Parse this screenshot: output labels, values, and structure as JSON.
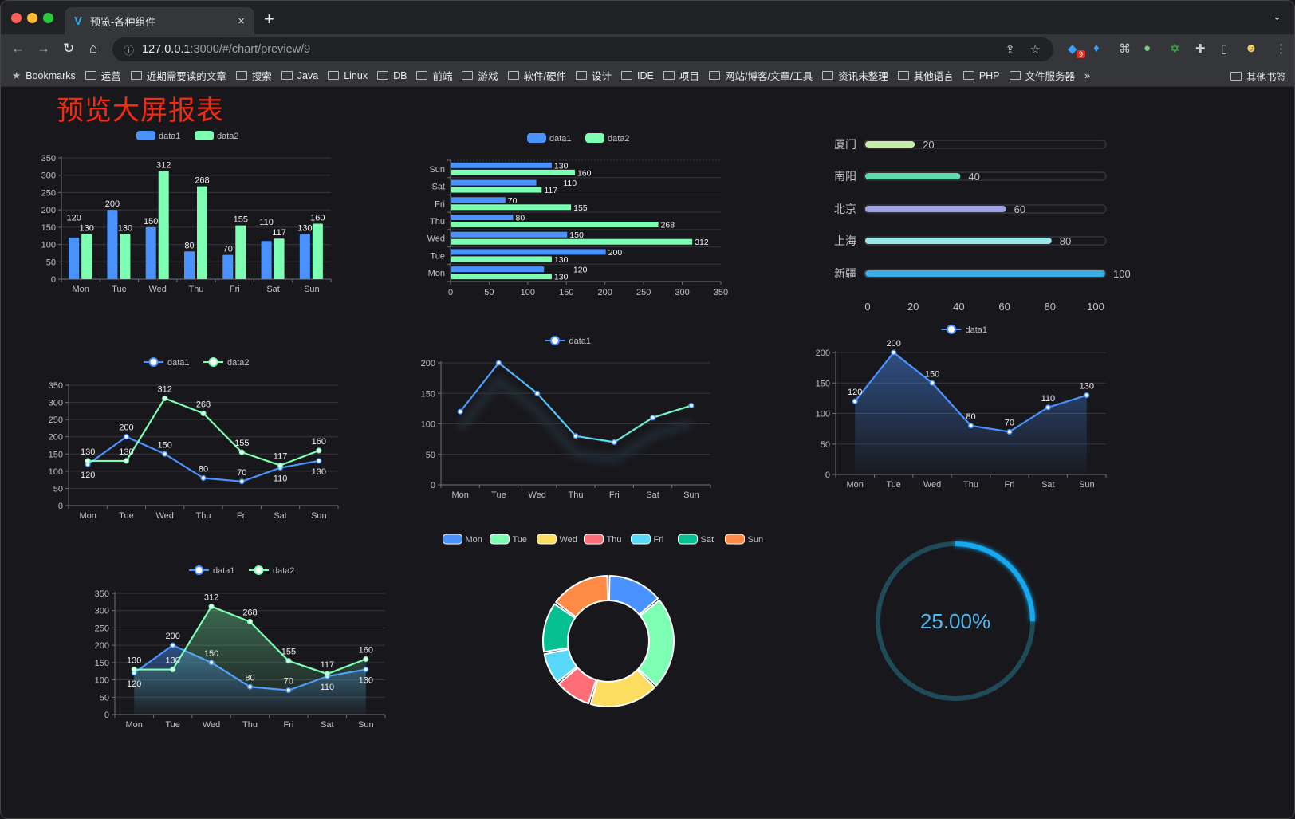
{
  "browser": {
    "tab_title": "预览-各种组件",
    "tab_close": "×",
    "new_tab": "+",
    "url_host": "127.0.0.1",
    "url_rest": ":3000/#/chart/preview/9",
    "ext_badge": "9",
    "bookmarks_label": "Bookmarks",
    "bookmarks": [
      "运营",
      "近期需要读的文章",
      "搜索",
      "Java",
      "Linux",
      "DB",
      "前端",
      "游戏",
      "软件/硬件",
      "设计",
      "IDE",
      "项目",
      "网站/博客/文章/工具",
      "资讯未整理",
      "其他语言",
      "PHP",
      "文件服务器"
    ],
    "overflow": "»",
    "other_bookmarks": "其他书签"
  },
  "page": {
    "title": "预览大屏报表"
  },
  "chart_data": [
    {
      "type": "bar",
      "categories": [
        "Mon",
        "Tue",
        "Wed",
        "Thu",
        "Fri",
        "Sat",
        "Sun"
      ],
      "series": [
        {
          "name": "data1",
          "values": [
            120,
            200,
            150,
            80,
            70,
            110,
            130
          ],
          "color": "#4992ff"
        },
        {
          "name": "data2",
          "values": [
            130,
            130,
            312,
            268,
            155,
            117,
            160
          ],
          "color": "#7cffb2"
        }
      ],
      "ylim": [
        0,
        350
      ],
      "yticks": [
        "0",
        "50",
        "100",
        "150",
        "200",
        "250",
        "300",
        "350"
      ],
      "legend": "top",
      "grid": true,
      "data_labels": true
    },
    {
      "type": "bar",
      "orientation": "horizontal",
      "categories": [
        "Mon",
        "Tue",
        "Wed",
        "Thu",
        "Fri",
        "Sat",
        "Sun"
      ],
      "series": [
        {
          "name": "data1",
          "values": [
            120,
            200,
            150,
            80,
            70,
            110,
            130
          ],
          "color": "#4992ff"
        },
        {
          "name": "data2",
          "values": [
            130,
            130,
            312,
            268,
            155,
            117,
            160
          ],
          "color": "#7cffb2"
        }
      ],
      "xlim": [
        0,
        350
      ],
      "xticks": [
        "0",
        "50",
        "100",
        "150",
        "200",
        "250",
        "300",
        "350"
      ],
      "legend": "top",
      "grid": true,
      "data_labels": true
    },
    {
      "type": "bar",
      "orientation": "horizontal",
      "style": "progress",
      "categories": [
        "厦门",
        "南阳",
        "北京",
        "上海",
        "新疆"
      ],
      "values": [
        20,
        40,
        60,
        80,
        100
      ],
      "labels": [
        "20",
        "40",
        "60",
        "80",
        "100"
      ],
      "colors": [
        "#c5eca8",
        "#5ddcac",
        "#9fa3e6",
        "#9ae6ed",
        "#3aaee4"
      ],
      "xlim": [
        0,
        100
      ],
      "xticks": [
        "0",
        "20",
        "40",
        "60",
        "80",
        "100"
      ]
    },
    {
      "type": "line",
      "categories": [
        "Mon",
        "Tue",
        "Wed",
        "Thu",
        "Fri",
        "Sat",
        "Sun"
      ],
      "series": [
        {
          "name": "data1",
          "values": [
            120,
            200,
            150,
            80,
            70,
            110,
            130
          ],
          "color": "#4992ff"
        },
        {
          "name": "data2",
          "values": [
            130,
            130,
            312,
            268,
            155,
            117,
            160
          ],
          "color": "#7cffb2"
        }
      ],
      "ylim": [
        0,
        350
      ],
      "yticks": [
        "0",
        "50",
        "100",
        "150",
        "200",
        "250",
        "300",
        "350"
      ],
      "legend": "top",
      "grid": true,
      "data_labels": true
    },
    {
      "type": "line",
      "categories": [
        "Mon",
        "Tue",
        "Wed",
        "Thu",
        "Fri",
        "Sat",
        "Sun"
      ],
      "series": [
        {
          "name": "data1",
          "values": [
            120,
            200,
            150,
            80,
            70,
            110,
            130
          ],
          "color": "#4992ff",
          "gradient_to": "#7cffb2"
        }
      ],
      "ylim": [
        0,
        200
      ],
      "yticks": [
        "0",
        "50",
        "100",
        "150",
        "200"
      ],
      "legend": "top",
      "grid": true,
      "data_labels": false
    },
    {
      "type": "area",
      "categories": [
        "Mon",
        "Tue",
        "Wed",
        "Thu",
        "Fri",
        "Sat",
        "Sun"
      ],
      "series": [
        {
          "name": "data1",
          "values": [
            120,
            200,
            150,
            80,
            70,
            110,
            130
          ],
          "color": "#4992ff"
        }
      ],
      "ylim": [
        0,
        200
      ],
      "yticks": [
        "0",
        "50",
        "100",
        "150",
        "200"
      ],
      "legend": "top",
      "grid": true,
      "data_labels": true
    },
    {
      "type": "area",
      "categories": [
        "Mon",
        "Tue",
        "Wed",
        "Thu",
        "Fri",
        "Sat",
        "Sun"
      ],
      "series": [
        {
          "name": "data1",
          "values": [
            120,
            200,
            150,
            80,
            70,
            110,
            130
          ],
          "color": "#4992ff"
        },
        {
          "name": "data2",
          "values": [
            130,
            130,
            312,
            268,
            155,
            117,
            160
          ],
          "color": "#7cffb2"
        }
      ],
      "ylim": [
        0,
        350
      ],
      "yticks": [
        "0",
        "50",
        "100",
        "150",
        "200",
        "250",
        "300",
        "350"
      ],
      "legend": "top",
      "grid": true,
      "data_labels": true
    },
    {
      "type": "pie",
      "style": "donut",
      "categories": [
        "Mon",
        "Tue",
        "Wed",
        "Thu",
        "Fri",
        "Sat",
        "Sun"
      ],
      "values": [
        120,
        200,
        150,
        80,
        70,
        110,
        130
      ],
      "colors": [
        "#4992ff",
        "#7cffb2",
        "#fddd60",
        "#ff6e76",
        "#58d9f9",
        "#05c091",
        "#ff8a45"
      ],
      "legend": "top"
    },
    {
      "type": "gauge",
      "value": 25,
      "label": "25.00%",
      "color": "#12a9f0",
      "track_color": "#1f4a58"
    }
  ]
}
